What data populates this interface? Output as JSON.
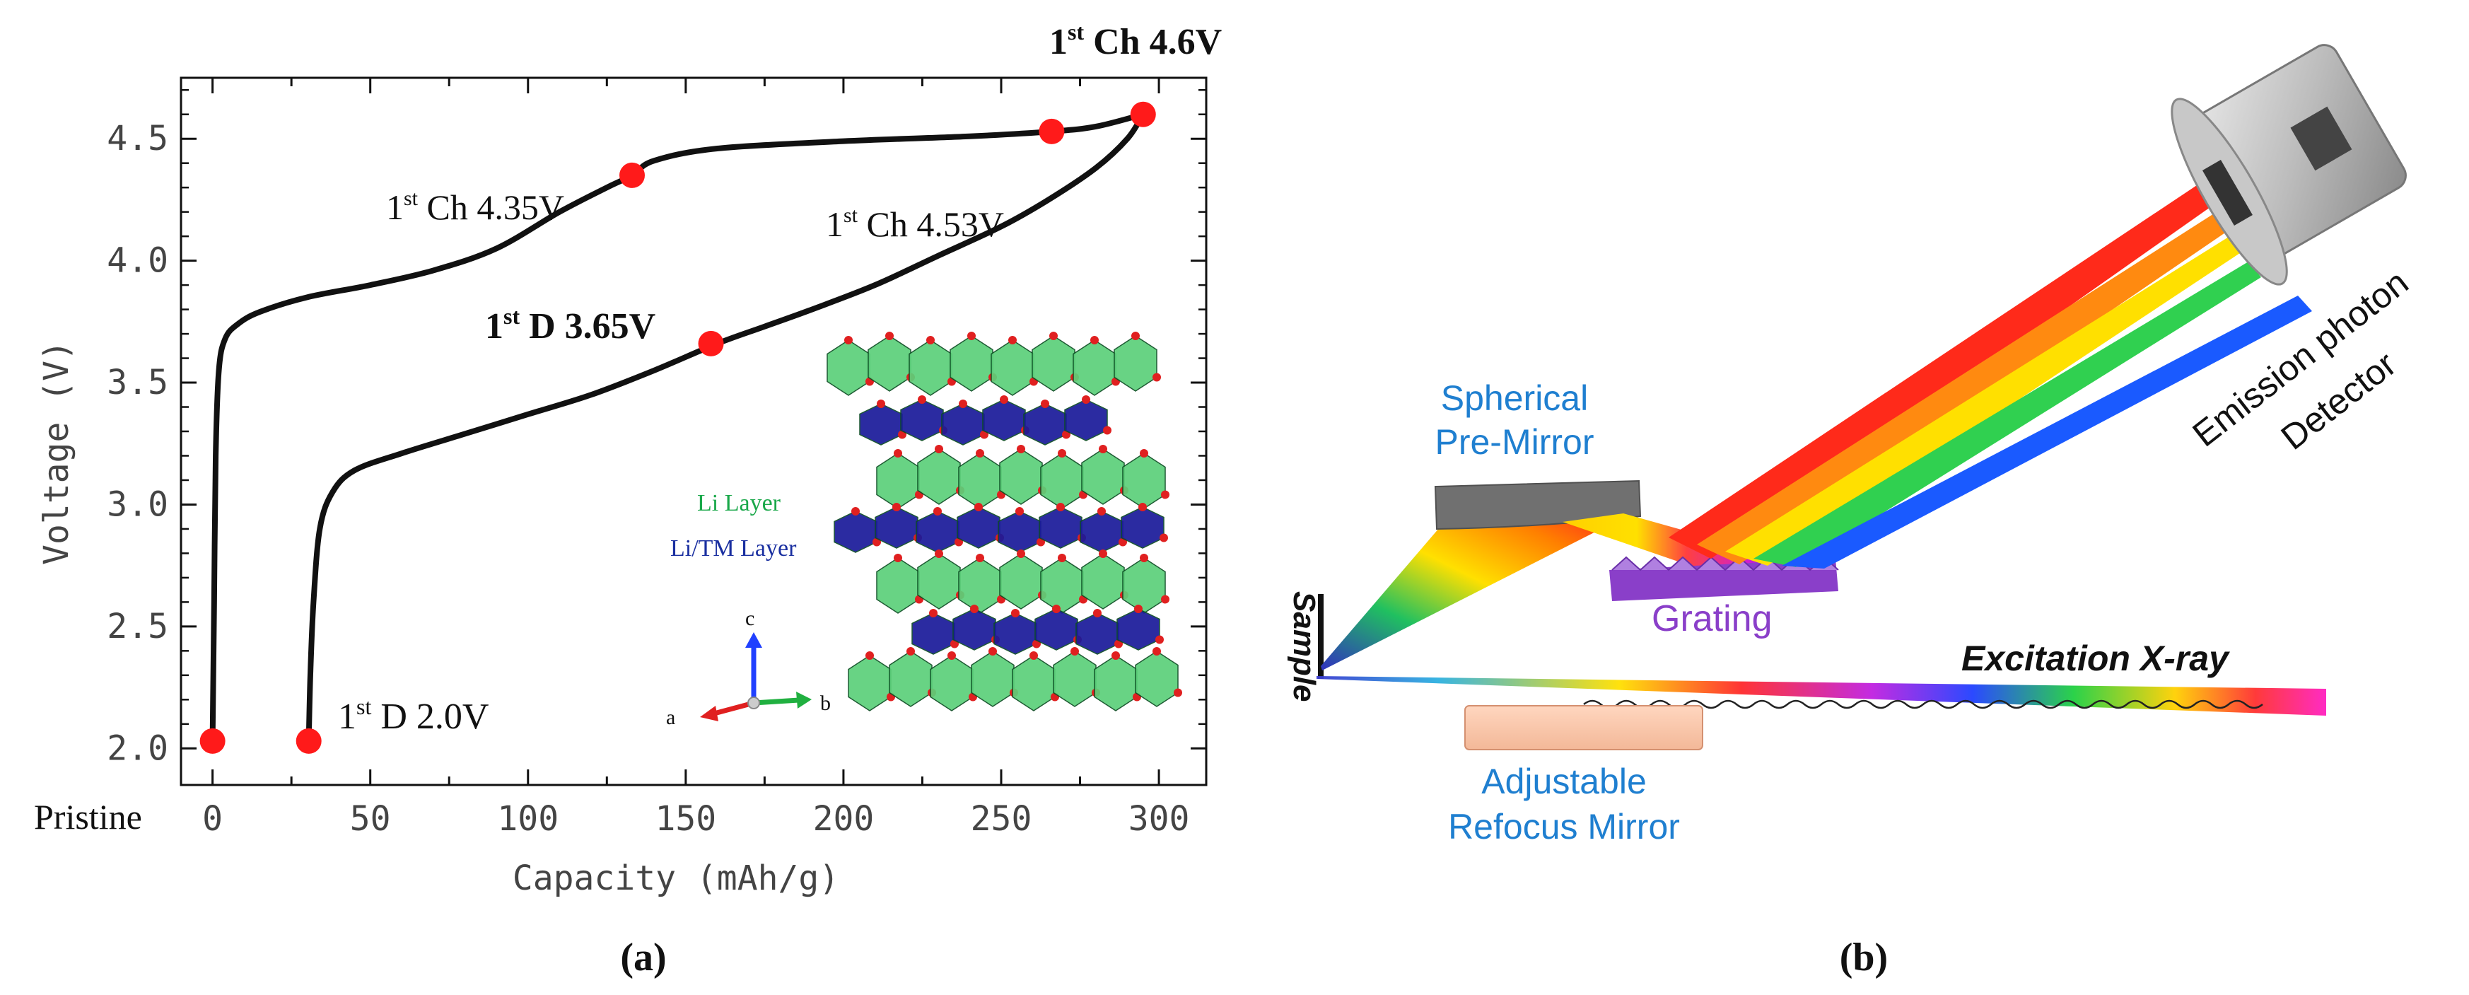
{
  "panel_a_caption": "(a)",
  "panel_b_caption": "(b)",
  "chart_data": {
    "type": "line",
    "xlabel": "Capacity (mAh/g)",
    "ylabel": "Voltage (V)",
    "xlim": [
      -10,
      315
    ],
    "ylim": [
      1.85,
      4.75
    ],
    "xticks": [
      0,
      50,
      100,
      150,
      200,
      250,
      300
    ],
    "xtick_labels": [
      "0",
      "50",
      "100",
      "150",
      "200",
      "250",
      "300"
    ],
    "yticks": [
      2.0,
      2.5,
      3.0,
      3.5,
      4.0,
      4.5
    ],
    "ytick_labels": [
      "2.0",
      "2.5",
      "3.0",
      "3.5",
      "4.0",
      "4.5"
    ],
    "pristine_label": "Pristine",
    "series": [
      {
        "name": "1st charge",
        "x": [
          0,
          0.5,
          1,
          2,
          4,
          8,
          15,
          30,
          50,
          70,
          90,
          110,
          125,
          133,
          140,
          160,
          200,
          240,
          266,
          280,
          295
        ],
        "y": [
          2.03,
          2.6,
          3.2,
          3.55,
          3.68,
          3.74,
          3.79,
          3.85,
          3.9,
          3.96,
          4.05,
          4.2,
          4.3,
          4.35,
          4.41,
          4.46,
          4.49,
          4.51,
          4.53,
          4.55,
          4.6
        ]
      },
      {
        "name": "1st discharge",
        "x": [
          295,
          290,
          280,
          265,
          250,
          230,
          210,
          190,
          175,
          160,
          140,
          120,
          100,
          80,
          60,
          45,
          38,
          34,
          32,
          31,
          30.5
        ],
        "y": [
          4.6,
          4.5,
          4.38,
          4.25,
          4.14,
          4.02,
          3.9,
          3.8,
          3.73,
          3.66,
          3.55,
          3.45,
          3.37,
          3.29,
          3.21,
          3.14,
          3.05,
          2.9,
          2.6,
          2.3,
          2.03
        ]
      }
    ],
    "markers": [
      {
        "x": 0,
        "y": 2.03,
        "label": ""
      },
      {
        "x": 30.5,
        "y": 2.03,
        "label": "1st D 2.0V"
      },
      {
        "x": 133,
        "y": 4.35,
        "label": "1st Ch 4.35V"
      },
      {
        "x": 158,
        "y": 3.66,
        "label": "1st D 3.65V"
      },
      {
        "x": 266,
        "y": 4.53,
        "label": "1st Ch 4.53V"
      },
      {
        "x": 295,
        "y": 4.6,
        "label": "1st Ch 4.6V"
      }
    ],
    "annotations": [
      {
        "prefix": "1",
        "sup": "st",
        "rest": " Ch 4.6V"
      },
      {
        "prefix": "1",
        "sup": "st",
        "rest": " Ch 4.35V"
      },
      {
        "prefix": "1",
        "sup": "st",
        "rest": " Ch 4.53V"
      },
      {
        "prefix": "1",
        "sup": "st",
        "rest": " D 3.65V"
      },
      {
        "prefix": "1",
        "sup": "st",
        "rest": " D 2.0V"
      }
    ],
    "inset": {
      "li_layer": "Li Layer",
      "litm_layer": "Li/TM Layer",
      "axis_a": "a",
      "axis_b": "b",
      "axis_c": "c"
    }
  },
  "diagram_b": {
    "spherical_line1": "Spherical",
    "spherical_line2": "Pre-Mirror",
    "grating": "Grating",
    "sample": "Sample",
    "excitation": "Excitation X-ray",
    "adjustable_line1": "Adjustable",
    "adjustable_line2": "Refocus Mirror",
    "emission_line1": "Emission photon",
    "emission_line2": "Detector"
  },
  "colors": {
    "curve": "#111111",
    "marker": "#ff1a1a",
    "li_layer": "#1aa84a",
    "litm_layer": "#1a2fa0",
    "label_blue": "#1f7fd0",
    "grating_purple": "#8a3fc9",
    "octa_green": "#5cd07a",
    "octa_blue": "#1a1a9a",
    "oxygen": "#e02020"
  }
}
